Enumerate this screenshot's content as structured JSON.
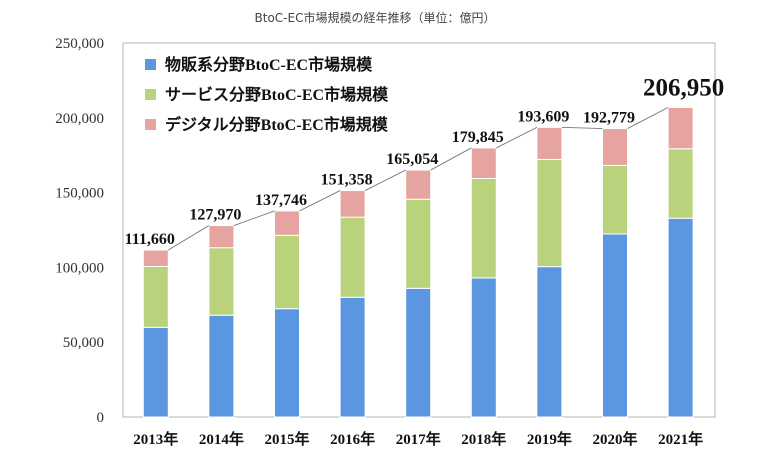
{
  "chart_data": {
    "type": "bar",
    "stacked": true,
    "title": "BtoC-EC市場規模の経年推移（単位：億円）",
    "categories": [
      "2013年",
      "2014年",
      "2015年",
      "2016年",
      "2017年",
      "2018年",
      "2019年",
      "2020年",
      "2021年"
    ],
    "series": [
      {
        "name": "物販系分野BtoC-EC市場規模",
        "color": "#5b96e0",
        "values": [
          59931,
          68043,
          72398,
          80043,
          86008,
          92992,
          100515,
          122333,
          132865
        ]
      },
      {
        "name": "サービス分野BtoC-EC市場規模",
        "color": "#b9d37c",
        "values": [
          40708,
          45110,
          49014,
          53532,
          59568,
          66471,
          71672,
          45832,
          46424
        ]
      },
      {
        "name": "デジタル分野BtoC-EC市場規模",
        "color": "#e6a4a1",
        "values": [
          11021,
          14817,
          16334,
          17783,
          19478,
          20382,
          21422,
          24614,
          27661
        ]
      }
    ],
    "totals": [
      "111,660",
      "127,970",
      "137,746",
      "151,358",
      "165,054",
      "179,845",
      "193,609",
      "192,779",
      "206,950"
    ],
    "yticks": [
      "0",
      "50,000",
      "100,000",
      "150,000",
      "200,000",
      "250,000"
    ],
    "ylim": [
      0,
      250000
    ],
    "legend_position": "top-left",
    "grid": false
  }
}
